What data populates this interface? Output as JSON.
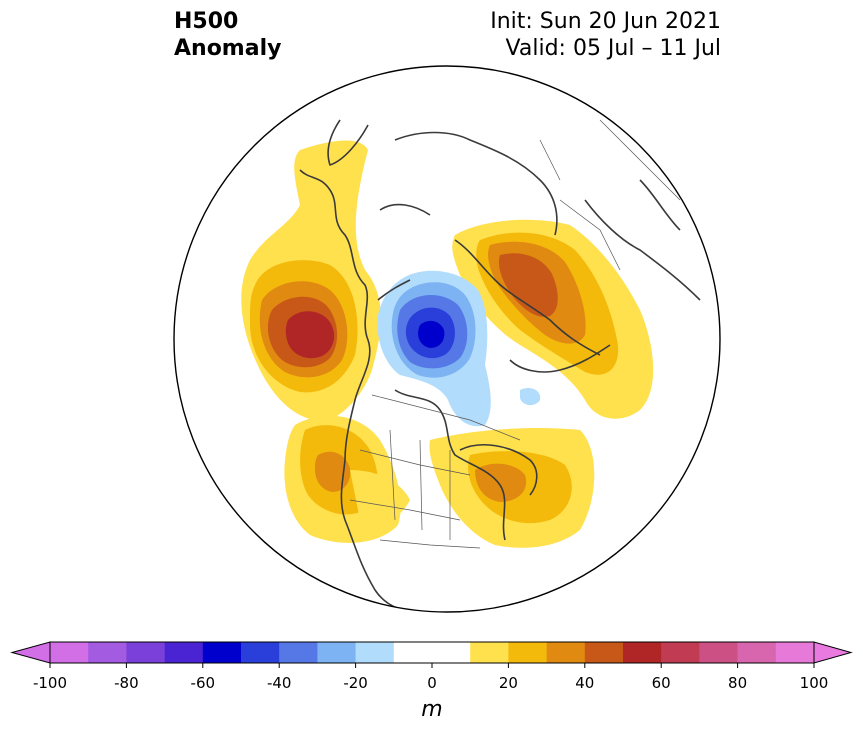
{
  "title": {
    "line1": "H500",
    "line2": "Anomaly"
  },
  "init": {
    "line1": "Init: Sun 20 Jun 2021",
    "line2": "Valid: 05 Jul – 11 Jul"
  },
  "colorbar": {
    "unit": "m",
    "min": -100,
    "max": 100,
    "ticks": [
      -100,
      -80,
      -60,
      -40,
      -20,
      0,
      20,
      40,
      60,
      80,
      100
    ],
    "levels": [
      -90,
      -80,
      -70,
      -60,
      -50,
      -40,
      -30,
      -20,
      -10,
      10,
      20,
      30,
      40,
      50,
      60,
      70,
      80,
      90
    ],
    "colors": [
      "#d36fe6",
      "#a35be2",
      "#7a40d9",
      "#4a23d2",
      "#0000cd",
      "#2a3ed9",
      "#5578e6",
      "#7db3f2",
      "#b2dcfc",
      "#ffffff",
      "#ffe04d",
      "#f4ba0b",
      "#e18a11",
      "#c85818",
      "#b02626",
      "#c13c52",
      "#cc5083",
      "#d866ae",
      "#e77ad9",
      "#e87ae0"
    ]
  },
  "map": {
    "projection": "north-polar-stereographic"
  }
}
